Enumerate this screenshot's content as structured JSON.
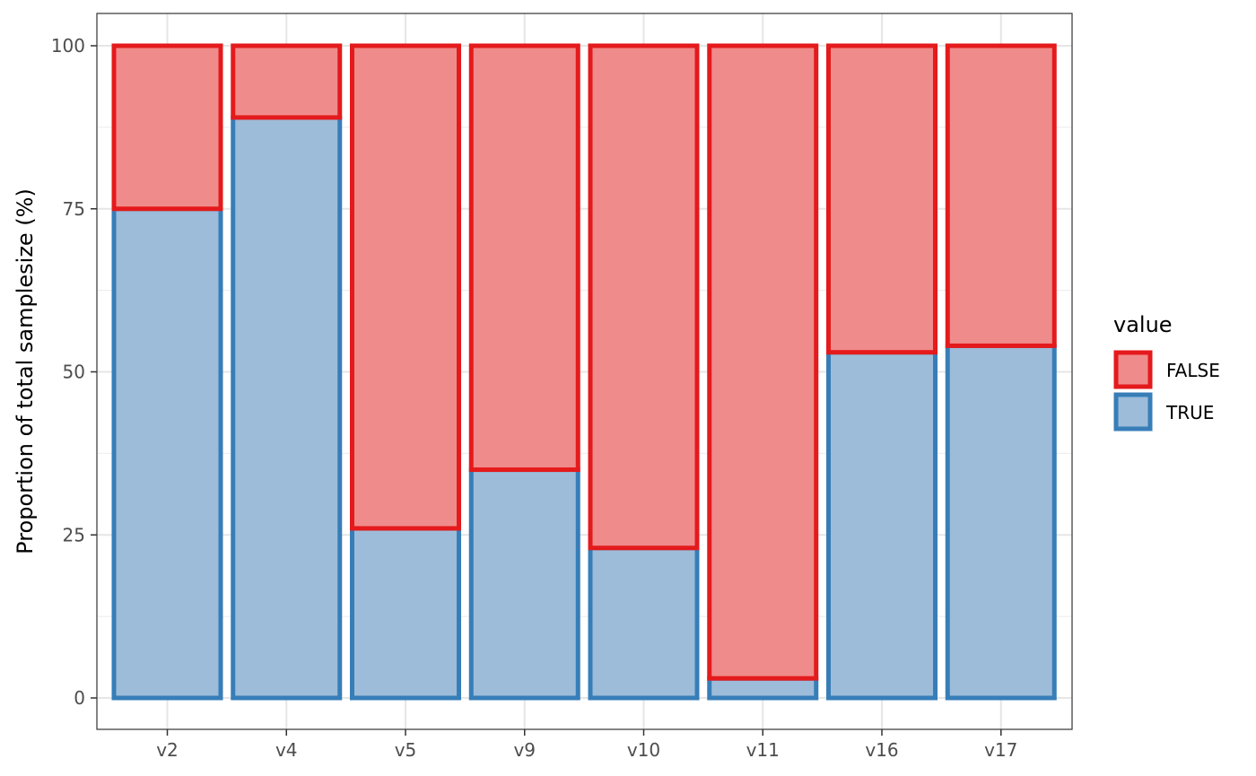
{
  "chart_data": {
    "type": "bar",
    "stacked": true,
    "categories": [
      "v2",
      "v4",
      "v5",
      "v9",
      "v10",
      "v11",
      "v16",
      "v17"
    ],
    "series": [
      {
        "name": "TRUE",
        "values": [
          75,
          89,
          26,
          35,
          23,
          3,
          53,
          54
        ],
        "fill": "#9dbcd9",
        "stroke": "#377eb8"
      },
      {
        "name": "FALSE",
        "values": [
          25,
          11,
          74,
          65,
          77,
          97,
          47,
          46
        ],
        "fill": "#f08b8b",
        "stroke": "#e41a1c"
      }
    ],
    "ylabel": "Proportion of total samplesize (%)",
    "xlabel": "",
    "ylim": [
      0,
      100
    ],
    "yticks": [
      0,
      25,
      50,
      75,
      100
    ],
    "grid": true,
    "legend": {
      "title": "value",
      "position": "right",
      "entries": [
        {
          "label": "FALSE",
          "fill": "#f08b8b",
          "stroke": "#e41a1c"
        },
        {
          "label": "TRUE",
          "fill": "#9dbcd9",
          "stroke": "#377eb8"
        }
      ]
    }
  }
}
